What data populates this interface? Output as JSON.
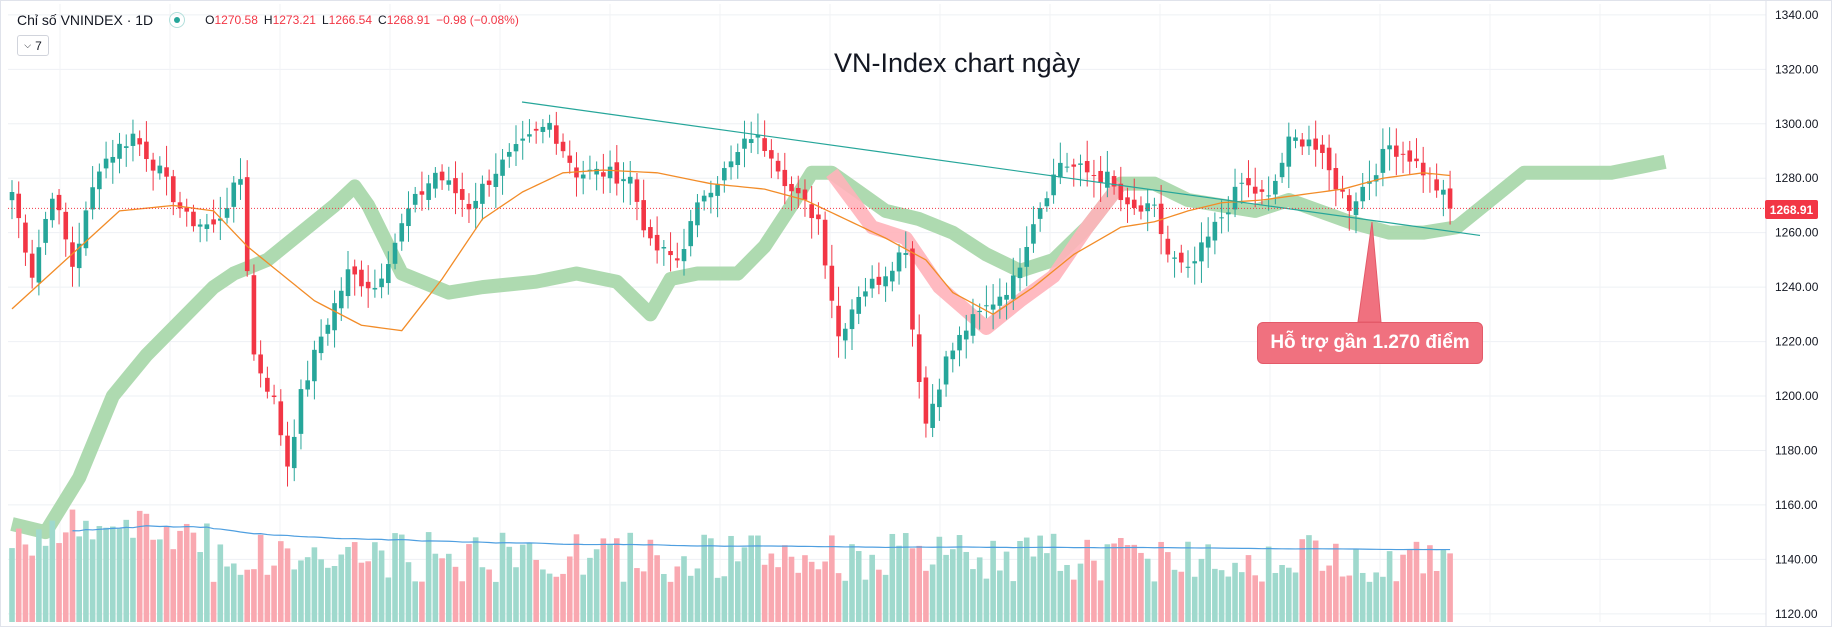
{
  "legend": {
    "symbol": "Chỉ số VNINDEX · 1D",
    "o_label": "O",
    "o_value": "1270.58",
    "h_label": "H",
    "h_value": "1273.21",
    "l_label": "L",
    "l_value": "1266.54",
    "c_label": "C",
    "c_value": "1268.91",
    "change": "−0.98 (−0.08%)",
    "collapse_label": "7"
  },
  "colors": {
    "up": "#26a69a",
    "down": "#f23645",
    "volume_up": "#9fd9cd",
    "volume_down": "#f9a8b0",
    "cloud_bull": "#a5d6a7",
    "cloud_bear": "#ffb3ba",
    "ma": "#f28c28",
    "volume_ma": "#4f9fe0",
    "trendline": "#26a69a"
  },
  "chart_data": {
    "type": "candlestick",
    "title": "VN-Index chart ngày",
    "interval": "1D",
    "last_price": 1268.91,
    "last_price_label": "1268.91",
    "ylim": [
      1117,
      1344
    ],
    "y_ticks": [
      1340,
      1320,
      1300,
      1280,
      1260,
      1240,
      1220,
      1200,
      1180,
      1160,
      1140,
      1120
    ],
    "y_tick_labels": [
      "1340.00",
      "1320.00",
      "1300.00",
      "1280.00",
      "1260.00",
      "1240.00",
      "1220.00",
      "1200.00",
      "1180.00",
      "1160.00",
      "1140.00",
      "1120.00"
    ],
    "grid": true,
    "annotation": "Hỗ trợ gần 1.270 điểm",
    "trendline": [
      [
        0,
        1308
      ],
      [
        220,
        1259
      ]
    ],
    "ohlc_keyframes": [
      [
        0,
        1275
      ],
      [
        3,
        1245
      ],
      [
        6,
        1275
      ],
      [
        9,
        1248
      ],
      [
        13,
        1285
      ],
      [
        18,
        1296
      ],
      [
        22,
        1282
      ],
      [
        26,
        1265
      ],
      [
        30,
        1262
      ],
      [
        34,
        1280
      ],
      [
        36,
        1215
      ],
      [
        39,
        1198
      ],
      [
        41,
        1175
      ],
      [
        43,
        1200
      ],
      [
        46,
        1222
      ],
      [
        50,
        1245
      ],
      [
        54,
        1240
      ],
      [
        59,
        1268
      ],
      [
        63,
        1282
      ],
      [
        68,
        1270
      ],
      [
        72,
        1283
      ],
      [
        76,
        1292
      ],
      [
        80,
        1300
      ],
      [
        84,
        1282
      ],
      [
        88,
        1282
      ],
      [
        92,
        1280
      ],
      [
        95,
        1255
      ],
      [
        99,
        1250
      ],
      [
        103,
        1275
      ],
      [
        107,
        1285
      ],
      [
        110,
        1296
      ],
      [
        113,
        1290
      ],
      [
        116,
        1275
      ],
      [
        120,
        1265
      ],
      [
        123,
        1222
      ],
      [
        126,
        1238
      ],
      [
        129,
        1243
      ],
      [
        133,
        1255
      ],
      [
        134,
        1225
      ],
      [
        136,
        1190
      ],
      [
        139,
        1213
      ],
      [
        142,
        1225
      ],
      [
        146,
        1235
      ],
      [
        149,
        1242
      ],
      [
        152,
        1265
      ],
      [
        156,
        1286
      ],
      [
        160,
        1282
      ],
      [
        163,
        1280
      ],
      [
        166,
        1268
      ],
      [
        170,
        1268
      ],
      [
        172,
        1252
      ],
      [
        175,
        1245
      ],
      [
        179,
        1262
      ],
      [
        183,
        1278
      ],
      [
        187,
        1272
      ],
      [
        190,
        1293
      ],
      [
        193,
        1295
      ],
      [
        196,
        1282
      ],
      [
        199,
        1270
      ],
      [
        202,
        1280
      ],
      [
        205,
        1292
      ],
      [
        208,
        1288
      ],
      [
        211,
        1280
      ],
      [
        214,
        1270
      ]
    ],
    "cloud": {
      "bull": [
        [
          0,
          1153
        ],
        [
          5,
          1150
        ],
        [
          10,
          1170
        ],
        [
          15,
          1200
        ],
        [
          20,
          1215
        ],
        [
          26,
          1230
        ],
        [
          30,
          1240
        ],
        [
          33,
          1245
        ],
        [
          38,
          1250
        ],
        [
          43,
          1260
        ],
        [
          48,
          1270
        ],
        [
          51,
          1277
        ],
        [
          53,
          1270
        ],
        [
          56,
          1255
        ],
        [
          58,
          1245
        ],
        [
          65,
          1238
        ],
        [
          70,
          1240
        ],
        [
          78,
          1242
        ],
        [
          84,
          1245
        ],
        [
          90,
          1242
        ],
        [
          95,
          1230
        ],
        [
          98,
          1243
        ],
        [
          102,
          1245
        ],
        [
          108,
          1245
        ],
        [
          112,
          1255
        ],
        [
          116,
          1270
        ],
        [
          119,
          1282
        ],
        [
          122,
          1282
        ],
        [
          126,
          1275
        ],
        [
          130,
          1268
        ],
        [
          135,
          1265
        ],
        [
          140,
          1260
        ],
        [
          145,
          1252
        ],
        [
          150,
          1246
        ],
        [
          155,
          1250
        ],
        [
          160,
          1262
        ],
        [
          165,
          1278
        ],
        [
          170,
          1278
        ],
        [
          175,
          1272
        ],
        [
          185,
          1268
        ],
        [
          190,
          1272
        ],
        [
          199,
          1264
        ],
        [
          205,
          1260
        ],
        [
          210,
          1260
        ],
        [
          215,
          1262
        ],
        [
          220,
          1272
        ],
        [
          225,
          1282
        ],
        [
          230,
          1282
        ],
        [
          238,
          1282
        ],
        [
          246,
          1286
        ]
      ],
      "bear": [
        [
          122,
          1282
        ],
        [
          128,
          1262
        ],
        [
          133,
          1258
        ],
        [
          138,
          1240
        ],
        [
          145,
          1225
        ],
        [
          150,
          1235
        ],
        [
          155,
          1244
        ],
        [
          160,
          1262
        ],
        [
          165,
          1278
        ]
      ]
    },
    "ma_keyframes": [
      [
        0,
        1232
      ],
      [
        8,
        1250
      ],
      [
        16,
        1268
      ],
      [
        24,
        1270
      ],
      [
        30,
        1268
      ],
      [
        35,
        1255
      ],
      [
        40,
        1245
      ],
      [
        45,
        1235
      ],
      [
        52,
        1226
      ],
      [
        58,
        1224
      ],
      [
        64,
        1243
      ],
      [
        70,
        1265
      ],
      [
        76,
        1275
      ],
      [
        82,
        1282
      ],
      [
        88,
        1283
      ],
      [
        96,
        1282
      ],
      [
        104,
        1278
      ],
      [
        112,
        1276
      ],
      [
        118,
        1272
      ],
      [
        124,
        1265
      ],
      [
        130,
        1258
      ],
      [
        136,
        1250
      ],
      [
        140,
        1238
      ],
      [
        146,
        1230
      ],
      [
        152,
        1240
      ],
      [
        158,
        1252
      ],
      [
        165,
        1262
      ],
      [
        170,
        1264
      ],
      [
        175,
        1268
      ],
      [
        180,
        1271
      ],
      [
        186,
        1272
      ],
      [
        192,
        1274
      ],
      [
        198,
        1276
      ],
      [
        204,
        1280
      ],
      [
        210,
        1282
      ],
      [
        214,
        1281
      ]
    ]
  }
}
